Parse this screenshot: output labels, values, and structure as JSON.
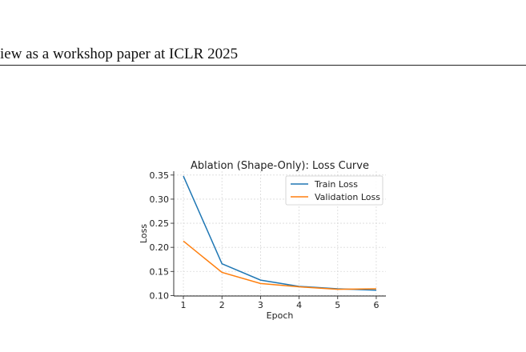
{
  "page": {
    "running_header": "iew as a workshop paper at ICLR 2025"
  },
  "chart_data": {
    "type": "line",
    "title": "Ablation (Shape-Only): Loss Curve",
    "xlabel": "Epoch",
    "ylabel": "Loss",
    "x": [
      1,
      2,
      3,
      4,
      5,
      6
    ],
    "xticks": [
      "1",
      "2",
      "3",
      "4",
      "5",
      "6"
    ],
    "yticks": [
      "0.10",
      "0.15",
      "0.20",
      "0.25",
      "0.30",
      "0.35"
    ],
    "xlim": [
      0.75,
      6.25
    ],
    "ylim": [
      0.099,
      0.358
    ],
    "grid": true,
    "legend_position": "upper-right",
    "series": [
      {
        "name": "Train Loss",
        "color": "#1f77b4",
        "values": [
          0.348,
          0.166,
          0.132,
          0.119,
          0.114,
          0.111
        ]
      },
      {
        "name": "Validation Loss",
        "color": "#ff7f0e",
        "values": [
          0.213,
          0.148,
          0.125,
          0.118,
          0.113,
          0.114
        ]
      }
    ]
  }
}
